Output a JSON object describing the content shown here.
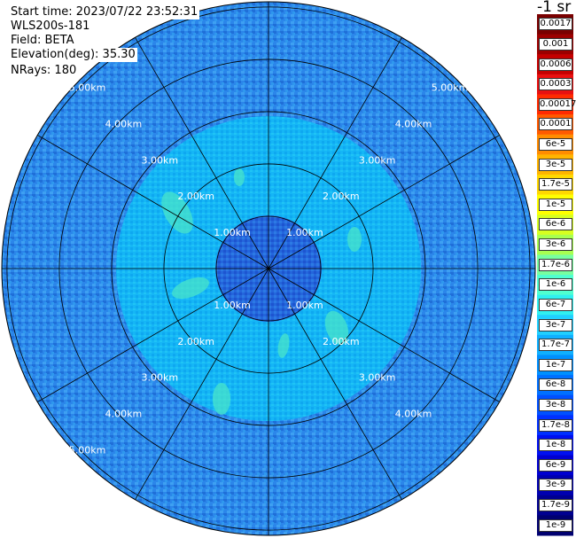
{
  "header": {
    "start_time": "Start time: 2023/07/22 23:52:31",
    "instrument": "WLS200s-181",
    "field": "Field: BETA",
    "elevation": "Elevation(deg): 35.30",
    "nrays": "NRays: 180"
  },
  "chart_data": {
    "type": "heatmap",
    "projection": "polar",
    "ring_labels": [
      "1.00km",
      "2.00km",
      "3.00km",
      "4.00km",
      "5.00km"
    ],
    "ring_values_km": [
      1,
      2,
      3,
      4,
      5
    ],
    "spoke_count": 12,
    "colorbar": {
      "title": "-1 sr",
      "labels": [
        "0.0017",
        "0.001",
        "0.0006",
        "0.0003",
        "0.00017",
        "0.0001",
        "6e-5",
        "3e-5",
        "1.7e-5",
        "1e-5",
        "6e-6",
        "3e-6",
        "1.7e-6",
        "1e-6",
        "6e-7",
        "3e-7",
        "1.7e-7",
        "1e-7",
        "6e-8",
        "3e-8",
        "1.7e-8",
        "1e-8",
        "6e-9",
        "3e-9",
        "1.7e-9",
        "1e-9"
      ]
    },
    "colors": {
      "background_field": "#2a8cf0",
      "inner_core": "#1e5ad8",
      "mid_ring": "#14b4f4",
      "highlight": "#4ce8c8"
    }
  }
}
